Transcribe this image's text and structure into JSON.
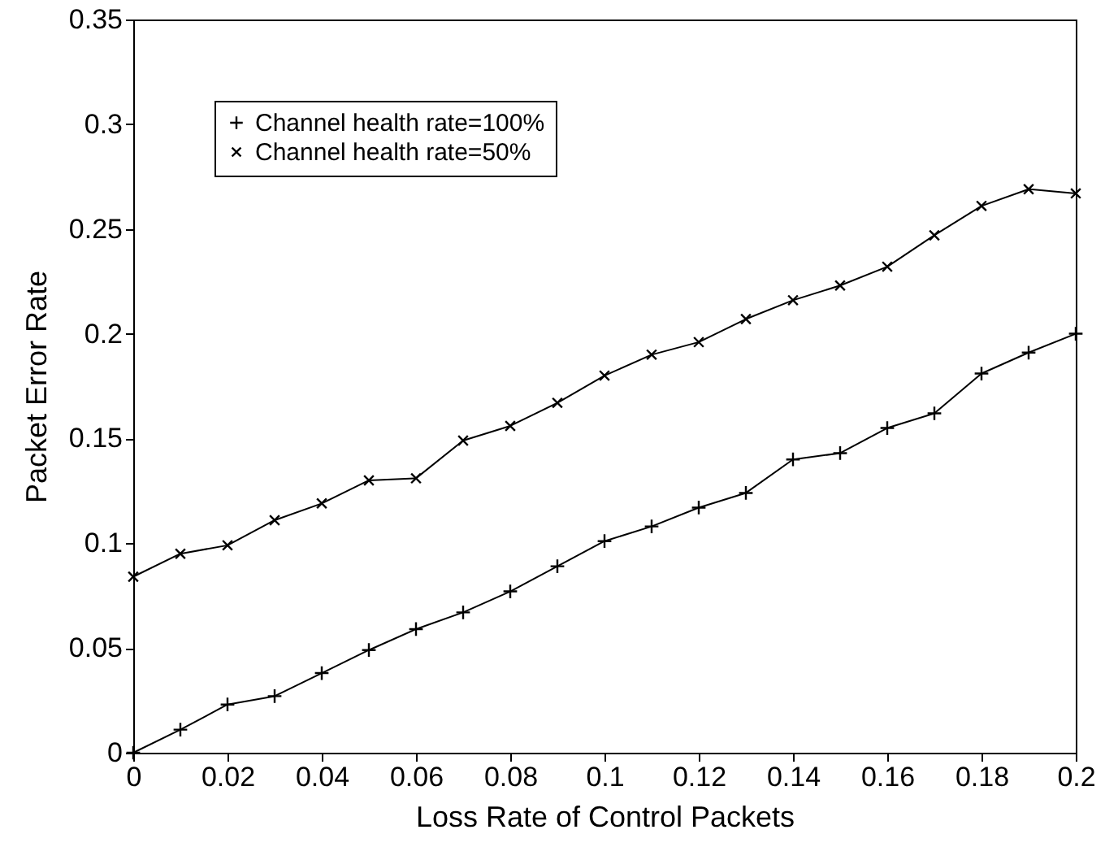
{
  "chart_data": {
    "type": "line",
    "xlabel": "Loss Rate of Control Packets",
    "ylabel": "Packet Error Rate",
    "x": [
      0,
      0.01,
      0.02,
      0.03,
      0.04,
      0.05,
      0.06,
      0.07,
      0.08,
      0.09,
      0.1,
      0.11,
      0.12,
      0.13,
      0.14,
      0.15,
      0.16,
      0.17,
      0.18,
      0.19,
      0.2
    ],
    "series": [
      {
        "name": "Channel health rate=100%",
        "color": "#000000",
        "marker": "cross",
        "values": [
          0,
          0.011,
          0.023,
          0.027,
          0.038,
          0.049,
          0.059,
          0.067,
          0.077,
          0.089,
          0.101,
          0.108,
          0.117,
          0.124,
          0.14,
          0.143,
          0.155,
          0.162,
          0.181,
          0.191,
          0.2
        ]
      },
      {
        "name": "Channel health rate=50%",
        "color": "#000000",
        "marker": "x",
        "values": [
          0.084,
          0.095,
          0.099,
          0.111,
          0.119,
          0.13,
          0.131,
          0.149,
          0.156,
          0.167,
          0.18,
          0.19,
          0.196,
          0.207,
          0.216,
          0.223,
          0.232,
          0.247,
          0.261,
          0.269,
          0.267
        ]
      }
    ],
    "xlim": [
      0,
      0.2
    ],
    "xticks": [
      0,
      0.02,
      0.04,
      0.06,
      0.08,
      0.1,
      0.12,
      0.14,
      0.16,
      0.18,
      0.2
    ],
    "ylim": [
      0,
      0.35
    ],
    "yticks": [
      0,
      0.05,
      0.1,
      0.15,
      0.2,
      0.25,
      0.3,
      0.35
    ],
    "grid": false,
    "legend": "top left",
    "line_style": "solid"
  }
}
